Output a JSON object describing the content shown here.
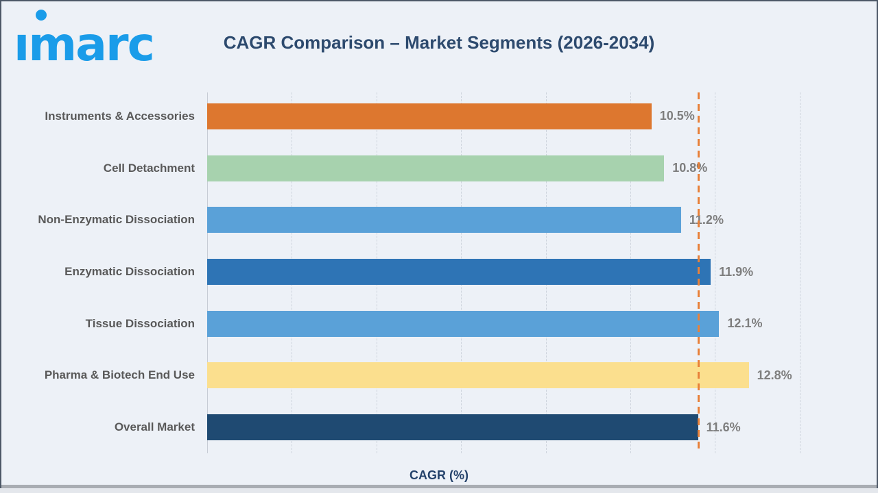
{
  "logo": {
    "text": "imarc"
  },
  "title": "CAGR Comparison – Market Segments (2026-2034)",
  "chart_data": {
    "type": "bar",
    "orientation": "horizontal",
    "title": "CAGR Comparison – Market Segments (2026-2034)",
    "xlabel": "CAGR (%)",
    "ylabel": "",
    "xlim": [
      0,
      15.4
    ],
    "grid": true,
    "gridline_interval": 2,
    "legend": false,
    "categories": [
      "Instruments & Accessories",
      "Cell Detachment",
      "Non-Enzymatic Dissociation",
      "Enzymatic Dissociation",
      "Tissue Dissociation",
      "Pharma & Biotech End Use",
      "Overall Market"
    ],
    "values": [
      10.5,
      10.8,
      11.2,
      11.9,
      12.1,
      12.8,
      11.6
    ],
    "value_labels": [
      "10.5%",
      "10.8%",
      "11.2%",
      "11.9%",
      "12.1%",
      "12.8%",
      "11.6%"
    ],
    "bar_colors": [
      "#DD772F",
      "#A7D2AE",
      "#5AA1D8",
      "#2E74B5",
      "#5AA1D8",
      "#FBDF8E",
      "#1F4A72"
    ],
    "reference_line": {
      "value": 11.6,
      "color": "#E8813A",
      "style": "dashed"
    }
  },
  "colors": {
    "background": "#EDF1F7",
    "title": "#2D4A6E",
    "category_label": "#595959",
    "value_label": "#7E7E7E",
    "axis_label": "#24426B",
    "gridline": "#CDD3DC",
    "logo_blue": "#1A9CE9"
  }
}
